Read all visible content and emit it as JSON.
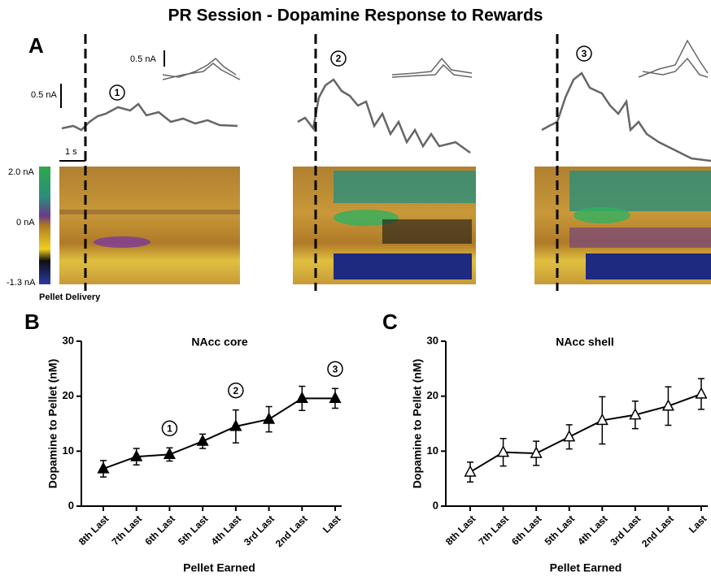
{
  "title": "PR Session - Dopamine Response to Rewards",
  "panel_a": {
    "letter": "A",
    "scale_current": [
      "0.5 nA",
      "0.5 nA"
    ],
    "scale_time": "1 s",
    "colorbar_labels": [
      "2.0 nA",
      "0 nA",
      "-1.3 nA"
    ],
    "event_label": "Pellet Delivery",
    "trial_labels": [
      "1",
      "2",
      "3"
    ]
  },
  "chart_data": [
    {
      "type": "line",
      "panel": "B",
      "title": "NAcc core",
      "xlabel": "Pellet Earned",
      "ylabel": "Dopamine to Pellet (nM)",
      "categories": [
        "8th Last",
        "7th Last",
        "6th Last",
        "5th Last",
        "4th Last",
        "3rd Last",
        "2nd Last",
        "Last"
      ],
      "series": [
        {
          "values": [
            6.8,
            9.0,
            9.4,
            11.8,
            14.5,
            15.8,
            19.6,
            19.6
          ],
          "errors": [
            1.5,
            1.5,
            1.2,
            1.3,
            3.0,
            2.3,
            2.2,
            1.8
          ],
          "color": "#000000",
          "marker_fill": "#000000"
        }
      ],
      "ylim": [
        0,
        30
      ],
      "yticks": [
        0,
        10,
        20,
        30
      ],
      "annotations": [
        {
          "x": "6th Last",
          "label": "1"
        },
        {
          "x": "4th Last",
          "label": "2"
        },
        {
          "x": "Last",
          "label": "3"
        }
      ]
    },
    {
      "type": "line",
      "panel": "C",
      "title": "NAcc shell",
      "xlabel": "Pellet Earned",
      "ylabel": "Dopamine to Pellet (nM)",
      "categories": [
        "8th Last",
        "7th Last",
        "6th Last",
        "5th Last",
        "4th Last",
        "3rd Last",
        "2nd Last",
        "Last"
      ],
      "series": [
        {
          "values": [
            6.2,
            9.8,
            9.6,
            12.6,
            15.6,
            16.6,
            18.2,
            20.4
          ],
          "errors": [
            1.8,
            2.5,
            2.2,
            2.2,
            4.3,
            2.5,
            3.5,
            2.8
          ],
          "color": "#000000",
          "marker_fill": "#ffffff"
        }
      ],
      "ylim": [
        0,
        30
      ],
      "yticks": [
        0,
        10,
        20,
        30
      ],
      "annotations": []
    }
  ]
}
